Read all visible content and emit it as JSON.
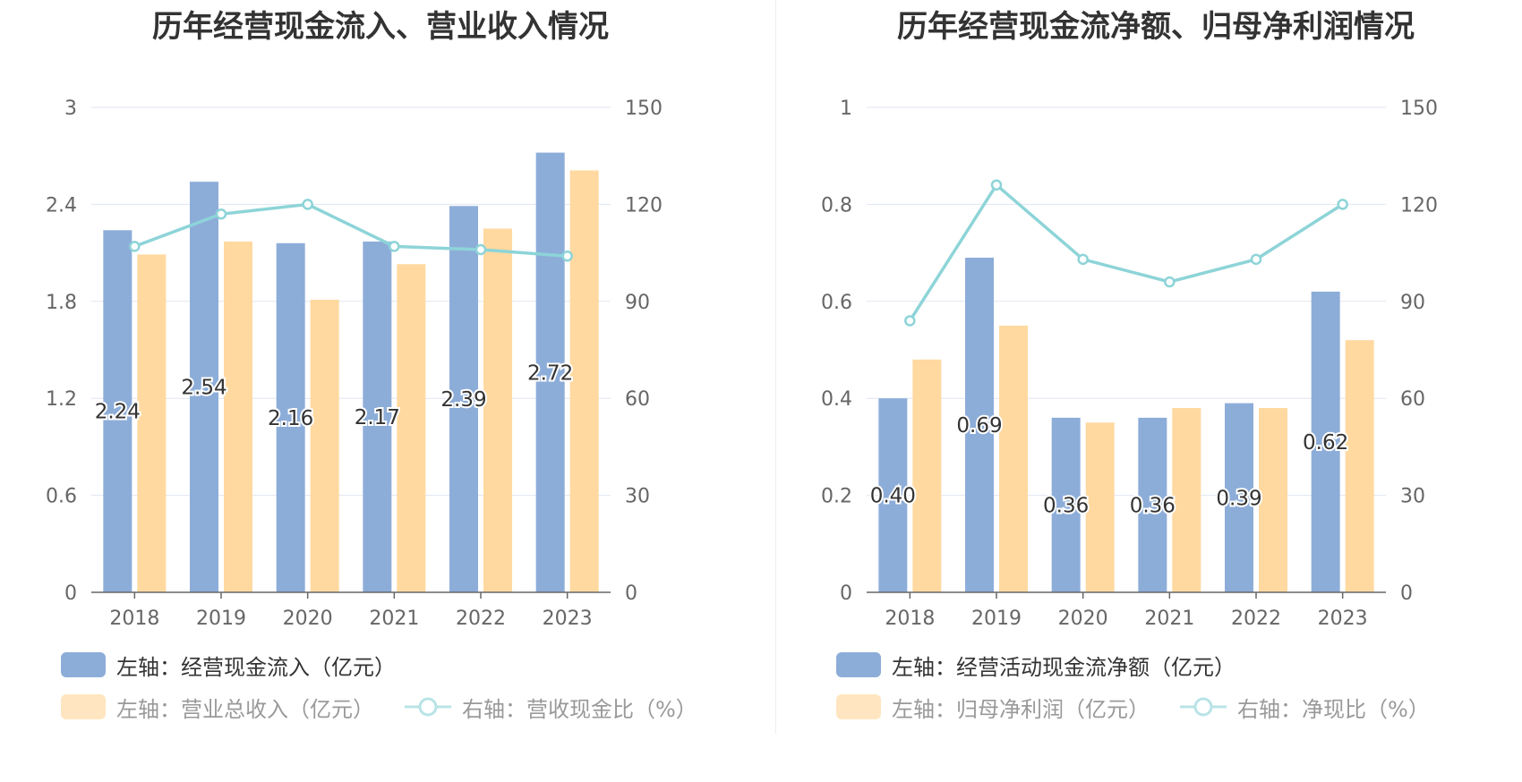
{
  "colors": {
    "inflow": "#8dadd9",
    "revenue": "#ffd9a0",
    "ratio": "#8dd4d8",
    "axis_text": "#666666",
    "grid": "#e0e6f1",
    "baseline": "#666666"
  },
  "chart_data": [
    {
      "type": "bar",
      "title": "历年经营现金流入、营业收入情况",
      "categories": [
        "2018",
        "2019",
        "2020",
        "2021",
        "2022",
        "2023"
      ],
      "y_left": {
        "min": 0,
        "max": 3,
        "ticks": [
          "0",
          "0.6",
          "1.2",
          "1.8",
          "2.4",
          "3"
        ]
      },
      "y_right": {
        "min": 0,
        "max": 150,
        "ticks": [
          "0",
          "30",
          "60",
          "90",
          "120",
          "150"
        ]
      },
      "series": [
        {
          "name": "左轴：经营现金流入（亿元）",
          "axis": "left",
          "type": "bar",
          "values": [
            2.24,
            2.54,
            2.16,
            2.17,
            2.39,
            2.72
          ],
          "labels": [
            "2.24",
            "2.54",
            "2.16",
            "2.17",
            "2.39",
            "2.72"
          ]
        },
        {
          "name": "左轴：营业总收入（亿元）",
          "axis": "left",
          "type": "bar",
          "values": [
            2.09,
            2.17,
            1.81,
            2.03,
            2.25,
            2.61
          ]
        },
        {
          "name": "右轴：营收现金比（%）",
          "axis": "right",
          "type": "line",
          "values": [
            107,
            117,
            120,
            107,
            106,
            104
          ]
        }
      ]
    },
    {
      "type": "bar",
      "title": "历年经营现金流净额、归母净利润情况",
      "categories": [
        "2018",
        "2019",
        "2020",
        "2021",
        "2022",
        "2023"
      ],
      "y_left": {
        "min": 0,
        "max": 1,
        "ticks": [
          "0",
          "0.2",
          "0.4",
          "0.6",
          "0.8",
          "1"
        ]
      },
      "y_right": {
        "min": 0,
        "max": 150,
        "ticks": [
          "0",
          "30",
          "60",
          "90",
          "120",
          "150"
        ]
      },
      "series": [
        {
          "name": "左轴：经营活动现金流净额（亿元）",
          "axis": "left",
          "type": "bar",
          "values": [
            0.4,
            0.69,
            0.36,
            0.36,
            0.39,
            0.62
          ],
          "labels": [
            "0.40",
            "0.69",
            "0.36",
            "0.36",
            "0.39",
            "0.62"
          ]
        },
        {
          "name": "左轴：归母净利润（亿元）",
          "axis": "left",
          "type": "bar",
          "values": [
            0.48,
            0.55,
            0.35,
            0.38,
            0.38,
            0.52
          ]
        },
        {
          "name": "右轴：净现比（%）",
          "axis": "right",
          "type": "line",
          "values": [
            84,
            126,
            103,
            96,
            103,
            120
          ]
        }
      ]
    }
  ]
}
